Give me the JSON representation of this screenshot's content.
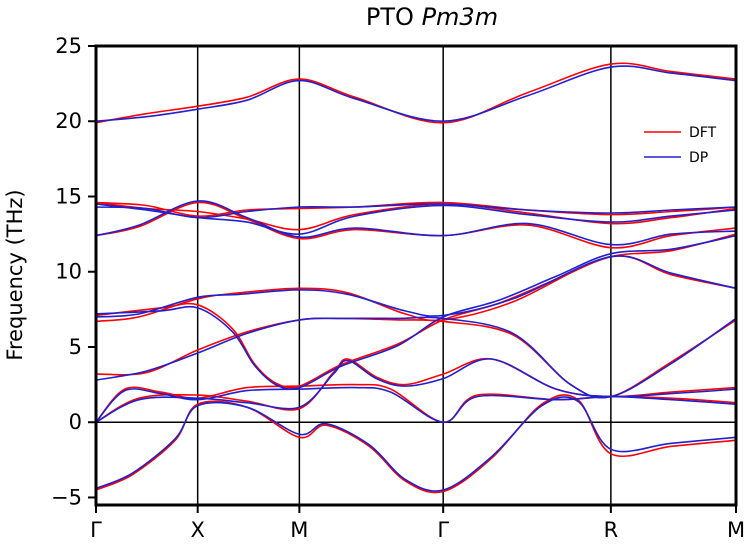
{
  "chart_data": {
    "type": "line",
    "title": "PTO",
    "title_italic": "Pm3m",
    "xlabel": "",
    "ylabel": "Frequency (THz)",
    "ylim": [
      -5.5,
      25
    ],
    "yticks": [
      -5,
      0,
      5,
      10,
      15,
      20,
      25
    ],
    "x_range": [
      0,
      4.45
    ],
    "x_ticks": [
      {
        "label": "Γ",
        "value": 0
      },
      {
        "label": "X",
        "value": 0.707
      },
      {
        "label": "M",
        "value": 1.414
      },
      {
        "label": "Γ",
        "value": 2.414
      },
      {
        "label": "R",
        "value": 3.58
      },
      {
        "label": "M",
        "value": 4.45
      }
    ],
    "zero_line": true,
    "legend_position": "top-right",
    "colors": {
      "DFT": "#ff0000",
      "DP": "#2020d0"
    },
    "series": [
      {
        "name": "DFT",
        "color": "#ff0000",
        "bands": [
          [
            [
              0,
              -4.5
            ],
            [
              0.25,
              -3.5
            ],
            [
              0.55,
              -1.2
            ],
            [
              0.707,
              1.2
            ],
            [
              1.05,
              1.0
            ],
            [
              1.414,
              -1.0
            ],
            [
              1.6,
              -0.2
            ],
            [
              1.9,
              -1.6
            ],
            [
              2.15,
              -3.9
            ],
            [
              2.414,
              -4.6
            ],
            [
              2.75,
              -2.4
            ],
            [
              3.1,
              1.2
            ],
            [
              3.35,
              1.5
            ],
            [
              3.58,
              -2.1
            ],
            [
              4.0,
              -1.6
            ],
            [
              4.45,
              -1.2
            ]
          ],
          [
            [
              0,
              0
            ],
            [
              0.2,
              2.2
            ],
            [
              0.45,
              2.0
            ],
            [
              0.707,
              1.6
            ],
            [
              1.05,
              2.3
            ],
            [
              1.414,
              2.4
            ],
            [
              1.8,
              2.5
            ],
            [
              2.05,
              2.2
            ],
            [
              2.414,
              0
            ],
            [
              2.65,
              1.8
            ],
            [
              3.2,
              1.5
            ],
            [
              3.58,
              1.7
            ],
            [
              4.0,
              1.6
            ],
            [
              4.45,
              1.3
            ]
          ],
          [
            [
              0,
              0
            ],
            [
              0.3,
              1.6
            ],
            [
              0.707,
              1.8
            ],
            [
              1.05,
              1.4
            ],
            [
              1.414,
              0.9
            ],
            [
              1.65,
              3.3
            ],
            [
              1.75,
              4.2
            ],
            [
              1.95,
              3.0
            ],
            [
              2.15,
              2.5
            ],
            [
              2.414,
              3.2
            ],
            [
              2.75,
              4.2
            ],
            [
              3.2,
              2.2
            ],
            [
              3.58,
              1.7
            ],
            [
              4.0,
              2.0
            ],
            [
              4.45,
              2.3
            ]
          ],
          [
            [
              0,
              3.2
            ],
            [
              0.35,
              3.3
            ],
            [
              0.707,
              4.8
            ],
            [
              1.05,
              6.0
            ],
            [
              1.414,
              6.8
            ],
            [
              1.7,
              6.9
            ],
            [
              2.1,
              6.8
            ],
            [
              2.414,
              6.7
            ],
            [
              2.9,
              5.8
            ],
            [
              3.3,
              2.5
            ],
            [
              3.58,
              1.7
            ],
            [
              4.0,
              4.0
            ],
            [
              4.45,
              6.8
            ]
          ],
          [
            [
              0,
              6.7
            ],
            [
              0.3,
              7.0
            ],
            [
              0.707,
              8.2
            ],
            [
              1.0,
              8.6
            ],
            [
              1.414,
              8.9
            ],
            [
              1.75,
              8.6
            ],
            [
              2.15,
              7.2
            ],
            [
              2.414,
              6.8
            ],
            [
              2.9,
              8.0
            ],
            [
              3.58,
              11.0
            ],
            [
              4.0,
              9.8
            ],
            [
              4.45,
              8.9
            ]
          ],
          [
            [
              0,
              7.1
            ],
            [
              0.45,
              7.6
            ],
            [
              0.707,
              7.8
            ],
            [
              0.95,
              6.2
            ],
            [
              1.1,
              3.9
            ],
            [
              1.25,
              2.6
            ],
            [
              1.414,
              2.4
            ],
            [
              1.7,
              3.8
            ],
            [
              2.1,
              5.2
            ],
            [
              2.414,
              6.8
            ],
            [
              2.8,
              7.9
            ],
            [
              3.2,
              9.5
            ],
            [
              3.58,
              11.0
            ],
            [
              4.0,
              11.4
            ],
            [
              4.45,
              12.5
            ]
          ],
          [
            [
              0,
              12.4
            ],
            [
              0.3,
              13.0
            ],
            [
              0.707,
              14.6
            ],
            [
              1.05,
              13.5
            ],
            [
              1.414,
              12.2
            ],
            [
              1.8,
              12.8
            ],
            [
              2.414,
              12.4
            ],
            [
              3.0,
              13.1
            ],
            [
              3.58,
              11.6
            ],
            [
              4.0,
              12.4
            ],
            [
              4.45,
              12.9
            ]
          ],
          [
            [
              0,
              14.6
            ],
            [
              0.35,
              14.2
            ],
            [
              0.707,
              14.0
            ],
            [
              1.05,
              13.5
            ],
            [
              1.414,
              12.8
            ],
            [
              1.8,
              13.8
            ],
            [
              2.414,
              14.5
            ],
            [
              3.0,
              13.9
            ],
            [
              3.58,
              13.2
            ],
            [
              4.0,
              13.6
            ],
            [
              4.45,
              14.2
            ]
          ],
          [
            [
              0,
              14.6
            ],
            [
              0.35,
              14.4
            ],
            [
              0.707,
              13.7
            ],
            [
              1.05,
              14.1
            ],
            [
              1.414,
              14.2
            ],
            [
              1.8,
              14.3
            ],
            [
              2.414,
              14.6
            ],
            [
              3.0,
              14.1
            ],
            [
              3.58,
              13.8
            ],
            [
              4.0,
              14.0
            ],
            [
              4.45,
              14.3
            ]
          ],
          [
            [
              0,
              19.9
            ],
            [
              0.35,
              20.5
            ],
            [
              0.707,
              21.0
            ],
            [
              1.05,
              21.6
            ],
            [
              1.414,
              22.8
            ],
            [
              1.8,
              21.6
            ],
            [
              2.414,
              19.9
            ],
            [
              3.0,
              21.9
            ],
            [
              3.58,
              23.8
            ],
            [
              4.0,
              23.3
            ],
            [
              4.45,
              22.8
            ]
          ]
        ]
      },
      {
        "name": "DP",
        "color": "#2020d0",
        "bands": [
          [
            [
              0,
              -4.4
            ],
            [
              0.25,
              -3.4
            ],
            [
              0.55,
              -1.1
            ],
            [
              0.707,
              1.1
            ],
            [
              1.05,
              1.0
            ],
            [
              1.414,
              -0.8
            ],
            [
              1.6,
              -0.1
            ],
            [
              1.9,
              -1.5
            ],
            [
              2.15,
              -3.8
            ],
            [
              2.414,
              -4.5
            ],
            [
              2.75,
              -2.3
            ],
            [
              3.1,
              1.1
            ],
            [
              3.35,
              1.4
            ],
            [
              3.58,
              -1.8
            ],
            [
              4.0,
              -1.4
            ],
            [
              4.45,
              -1.0
            ]
          ],
          [
            [
              0,
              0
            ],
            [
              0.2,
              2.1
            ],
            [
              0.45,
              1.9
            ],
            [
              0.707,
              1.5
            ],
            [
              1.05,
              2.1
            ],
            [
              1.414,
              2.2
            ],
            [
              1.8,
              2.3
            ],
            [
              2.05,
              2.0
            ],
            [
              2.414,
              0
            ],
            [
              2.65,
              1.7
            ],
            [
              3.2,
              1.5
            ],
            [
              3.58,
              1.7
            ],
            [
              4.0,
              1.5
            ],
            [
              4.45,
              1.2
            ]
          ],
          [
            [
              0,
              0
            ],
            [
              0.3,
              1.5
            ],
            [
              0.707,
              1.6
            ],
            [
              1.05,
              1.3
            ],
            [
              1.414,
              1.0
            ],
            [
              1.65,
              3.2
            ],
            [
              1.75,
              4.1
            ],
            [
              1.95,
              2.9
            ],
            [
              2.15,
              2.4
            ],
            [
              2.414,
              2.9
            ],
            [
              2.75,
              4.2
            ],
            [
              3.2,
              2.2
            ],
            [
              3.58,
              1.7
            ],
            [
              4.0,
              1.9
            ],
            [
              4.45,
              2.2
            ]
          ],
          [
            [
              0,
              2.8
            ],
            [
              0.35,
              3.4
            ],
            [
              0.707,
              4.6
            ],
            [
              1.05,
              5.9
            ],
            [
              1.414,
              6.8
            ],
            [
              1.7,
              6.9
            ],
            [
              2.1,
              6.9
            ],
            [
              2.414,
              6.9
            ],
            [
              2.9,
              5.9
            ],
            [
              3.3,
              2.5
            ],
            [
              3.58,
              1.7
            ],
            [
              4.0,
              3.9
            ],
            [
              4.45,
              6.9
            ]
          ],
          [
            [
              0,
              7.0
            ],
            [
              0.3,
              7.2
            ],
            [
              0.707,
              8.3
            ],
            [
              1.0,
              8.5
            ],
            [
              1.414,
              8.8
            ],
            [
              1.75,
              8.5
            ],
            [
              2.15,
              7.4
            ],
            [
              2.414,
              7.1
            ],
            [
              2.9,
              8.2
            ],
            [
              3.58,
              11.0
            ],
            [
              4.0,
              9.9
            ],
            [
              4.45,
              8.9
            ]
          ],
          [
            [
              0,
              7.2
            ],
            [
              0.45,
              7.4
            ],
            [
              0.707,
              7.6
            ],
            [
              0.95,
              6.0
            ],
            [
              1.1,
              3.8
            ],
            [
              1.25,
              2.5
            ],
            [
              1.414,
              2.3
            ],
            [
              1.7,
              3.7
            ],
            [
              2.1,
              5.1
            ],
            [
              2.414,
              7.0
            ],
            [
              2.8,
              8.1
            ],
            [
              3.2,
              9.7
            ],
            [
              3.58,
              11.2
            ],
            [
              4.0,
              11.5
            ],
            [
              4.45,
              12.4
            ]
          ],
          [
            [
              0,
              12.4
            ],
            [
              0.3,
              13.1
            ],
            [
              0.707,
              14.7
            ],
            [
              1.05,
              13.6
            ],
            [
              1.414,
              12.3
            ],
            [
              1.8,
              12.9
            ],
            [
              2.414,
              12.4
            ],
            [
              3.0,
              13.2
            ],
            [
              3.58,
              11.8
            ],
            [
              4.0,
              12.5
            ],
            [
              4.45,
              12.7
            ]
          ],
          [
            [
              0,
              14.5
            ],
            [
              0.35,
              14.1
            ],
            [
              0.707,
              13.6
            ],
            [
              1.05,
              13.3
            ],
            [
              1.414,
              12.5
            ],
            [
              1.8,
              13.7
            ],
            [
              2.414,
              14.4
            ],
            [
              3.0,
              13.8
            ],
            [
              3.58,
              13.3
            ],
            [
              4.0,
              13.7
            ],
            [
              4.45,
              14.1
            ]
          ],
          [
            [
              0,
              14.3
            ],
            [
              0.35,
              14.2
            ],
            [
              0.707,
              13.6
            ],
            [
              1.05,
              14.0
            ],
            [
              1.414,
              14.3
            ],
            [
              1.8,
              14.3
            ],
            [
              2.414,
              14.5
            ],
            [
              3.0,
              14.1
            ],
            [
              3.58,
              13.9
            ],
            [
              4.0,
              14.1
            ],
            [
              4.45,
              14.3
            ]
          ],
          [
            [
              0,
              20.0
            ],
            [
              0.35,
              20.3
            ],
            [
              0.707,
              20.8
            ],
            [
              1.05,
              21.4
            ],
            [
              1.414,
              22.7
            ],
            [
              1.8,
              21.5
            ],
            [
              2.414,
              20.0
            ],
            [
              3.0,
              21.7
            ],
            [
              3.58,
              23.6
            ],
            [
              4.0,
              23.2
            ],
            [
              4.45,
              22.7
            ]
          ]
        ]
      }
    ]
  }
}
